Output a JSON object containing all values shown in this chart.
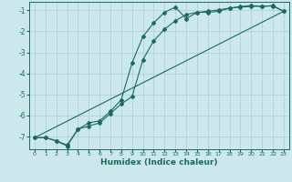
{
  "xlabel": "Humidex (Indice chaleur)",
  "bg_color": "#cde8ec",
  "grid_color": "#aacdd4",
  "line_color": "#1a6b5e",
  "xlim": [
    -0.5,
    23.5
  ],
  "ylim": [
    -7.6,
    -0.6
  ],
  "xticks": [
    0,
    1,
    2,
    3,
    4,
    5,
    6,
    7,
    8,
    9,
    10,
    11,
    12,
    13,
    14,
    15,
    16,
    17,
    18,
    19,
    20,
    21,
    22,
    23
  ],
  "yticks": [
    -7,
    -6,
    -5,
    -4,
    -3,
    -2,
    -1
  ],
  "line1_x": [
    0,
    1,
    2,
    3,
    4,
    5,
    6,
    7,
    8,
    9,
    10,
    11,
    12,
    13,
    14,
    15,
    16,
    17,
    18,
    19,
    20,
    21,
    22,
    23
  ],
  "line1_y": [
    -7.05,
    -7.05,
    -7.2,
    -7.45,
    -6.65,
    -6.35,
    -6.25,
    -5.8,
    -5.25,
    -3.5,
    -2.25,
    -1.6,
    -1.1,
    -0.85,
    -1.4,
    -1.1,
    -1.1,
    -1.05,
    -0.9,
    -0.82,
    -0.78,
    -0.82,
    -0.78,
    -1.05
  ],
  "line2_x": [
    0,
    1,
    2,
    3,
    4,
    5,
    6,
    7,
    8,
    9,
    10,
    11,
    12,
    13,
    14,
    15,
    16,
    17,
    18,
    19,
    20,
    21,
    22,
    23
  ],
  "line2_y": [
    -7.05,
    -7.05,
    -7.2,
    -7.4,
    -6.65,
    -6.5,
    -6.35,
    -5.9,
    -5.45,
    -5.1,
    -3.35,
    -2.45,
    -1.9,
    -1.5,
    -1.2,
    -1.1,
    -1.05,
    -0.98,
    -0.9,
    -0.85,
    -0.82,
    -0.8,
    -0.8,
    -1.05
  ],
  "line3_x": [
    0,
    23
  ],
  "line3_y": [
    -7.05,
    -1.05
  ]
}
